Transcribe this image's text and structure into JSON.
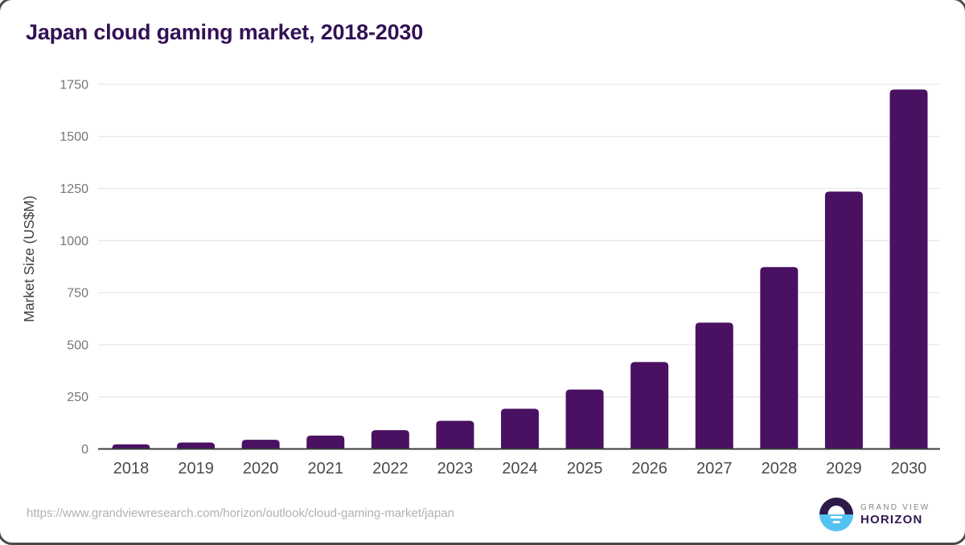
{
  "page": {
    "title": "Japan cloud gaming market, 2018-2030",
    "source_url": "https://www.grandviewresearch.com/horizon/outlook/cloud-gaming-market/japan"
  },
  "chart_data": {
    "type": "bar",
    "title": "Japan cloud gaming market, 2018-2030",
    "categories": [
      "2018",
      "2019",
      "2020",
      "2021",
      "2022",
      "2023",
      "2024",
      "2025",
      "2026",
      "2027",
      "2028",
      "2029",
      "2030"
    ],
    "values": [
      22,
      31,
      44,
      64,
      90,
      135,
      193,
      285,
      417,
      606,
      873,
      1235,
      1725
    ],
    "xlabel": "",
    "ylabel": "Market Size (US$M)",
    "ylim": [
      0,
      1810
    ],
    "yticks": [
      0,
      250,
      500,
      750,
      1000,
      1250,
      1500,
      1750
    ],
    "grid": true,
    "legend": false,
    "series_name": "Market Size (US$M)"
  },
  "logo": {
    "brand_line1": "GRAND VIEW",
    "brand_line2": "HORIZON"
  },
  "colors": {
    "bar": "#4a1061",
    "title": "#331155",
    "grid": "#e8e8e8",
    "axis_line": "#3b3b3b",
    "y_tick_text": "#767676",
    "x_tick_text": "#4a4a4a",
    "y_axis_title": "#3f3f3f",
    "url_text": "#b1b1b1",
    "logo_dark": "#2c1a49",
    "logo_blue": "#55c3f1",
    "logo_gray_text": "#85858d",
    "logo_purple_text": "#2f1a4e",
    "card_border": "#4a4a4a"
  }
}
